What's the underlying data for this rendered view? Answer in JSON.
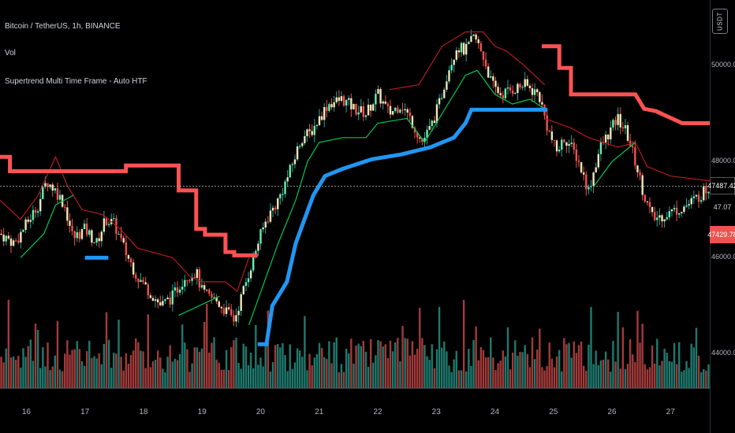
{
  "header": {
    "symbol_line": "Bitcoin / TetherUS, 1h, BINANCE",
    "volume_label": "Vol",
    "indicator_label": "Supertrend Multi Time Frame - Auto HTF",
    "currency_badge": "USDT"
  },
  "price_tags": {
    "last_price": "47487.42",
    "volume_value": "47.07",
    "supertrend_value": "47429.78"
  },
  "colors": {
    "background": "#000000",
    "candle_up": "#26a69a",
    "candle_down": "#ef5350",
    "candle_body_light": "#f0e6b8",
    "supertrend_htf_down": "#ff5252",
    "supertrend_htf_up": "#2196f3",
    "supertrend_ltf_down": "#b71c1c",
    "supertrend_ltf_up": "#00c853",
    "volume_up": "#1e7a6e",
    "volume_down": "#a33a3a"
  },
  "chart_data": {
    "type": "candlestick",
    "title": "Bitcoin / TetherUS, 1h, BINANCE",
    "x_ticks": [
      "16",
      "17",
      "18",
      "19",
      "20",
      "21",
      "22",
      "23",
      "24",
      "25",
      "26",
      "27"
    ],
    "x_range": [
      15.55,
      27.67
    ],
    "y_ticks": [
      "44000.00",
      "46000.00",
      "48000.00",
      "50000.00"
    ],
    "y_range": [
      43500,
      51200
    ],
    "last_price": 47487.42,
    "close_series": [
      [
        15.55,
        46500
      ],
      [
        15.8,
        46300
      ],
      [
        16.0,
        46700
      ],
      [
        16.2,
        47100
      ],
      [
        16.35,
        47600
      ],
      [
        16.5,
        47400
      ],
      [
        16.65,
        47100
      ],
      [
        16.8,
        46400
      ],
      [
        17.0,
        46600
      ],
      [
        17.2,
        46300
      ],
      [
        17.35,
        46800
      ],
      [
        17.5,
        46700
      ],
      [
        17.7,
        46100
      ],
      [
        17.9,
        45600
      ],
      [
        18.1,
        45300
      ],
      [
        18.3,
        45000
      ],
      [
        18.5,
        45200
      ],
      [
        18.7,
        45600
      ],
      [
        18.9,
        45700
      ],
      [
        19.0,
        45300
      ],
      [
        19.1,
        45200
      ],
      [
        19.25,
        45100
      ],
      [
        19.4,
        44900
      ],
      [
        19.55,
        44700
      ],
      [
        19.65,
        45100
      ],
      [
        19.8,
        45700
      ],
      [
        19.95,
        46300
      ],
      [
        20.1,
        46800
      ],
      [
        20.3,
        47200
      ],
      [
        20.5,
        47800
      ],
      [
        20.7,
        48500
      ],
      [
        20.85,
        48600
      ],
      [
        21.0,
        48900
      ],
      [
        21.15,
        49200
      ],
      [
        21.4,
        49300
      ],
      [
        21.6,
        49100
      ],
      [
        21.8,
        49000
      ],
      [
        22.0,
        49400
      ],
      [
        22.2,
        49000
      ],
      [
        22.4,
        49200
      ],
      [
        22.6,
        48800
      ],
      [
        22.75,
        48400
      ],
      [
        22.9,
        48700
      ],
      [
        23.05,
        49200
      ],
      [
        23.2,
        49900
      ],
      [
        23.35,
        50400
      ],
      [
        23.5,
        50300
      ],
      [
        23.65,
        50600
      ],
      [
        23.8,
        50200
      ],
      [
        23.95,
        49600
      ],
      [
        24.1,
        49400
      ],
      [
        24.3,
        49500
      ],
      [
        24.5,
        49600
      ],
      [
        24.75,
        49400
      ],
      [
        24.9,
        48700
      ],
      [
        25.05,
        48200
      ],
      [
        25.2,
        48500
      ],
      [
        25.4,
        48100
      ],
      [
        25.6,
        47400
      ],
      [
        25.8,
        48300
      ],
      [
        25.95,
        48600
      ],
      [
        26.1,
        48900
      ],
      [
        26.25,
        48600
      ],
      [
        26.4,
        48000
      ],
      [
        26.55,
        47300
      ],
      [
        26.7,
        46800
      ],
      [
        26.9,
        46900
      ],
      [
        27.1,
        47000
      ],
      [
        27.3,
        47100
      ],
      [
        27.5,
        47300
      ],
      [
        27.67,
        47487
      ]
    ],
    "supertrend_htf": [
      {
        "trend": "down",
        "points": [
          [
            15.55,
            48100
          ],
          [
            15.72,
            48100
          ],
          [
            15.72,
            47800
          ],
          [
            17.7,
            47800
          ],
          [
            17.7,
            47920
          ],
          [
            18.6,
            47920
          ],
          [
            18.6,
            47400
          ],
          [
            18.9,
            47400
          ],
          [
            18.9,
            46600
          ],
          [
            19.05,
            46600
          ],
          [
            19.05,
            46480
          ],
          [
            19.4,
            46480
          ],
          [
            19.4,
            46120
          ],
          [
            19.55,
            46120
          ],
          [
            19.55,
            46050
          ],
          [
            19.95,
            46050
          ]
        ]
      },
      {
        "trend": "up",
        "points": [
          [
            17.0,
            46000
          ],
          [
            17.4,
            46000
          ]
        ]
      },
      {
        "trend": "up",
        "points": [
          [
            19.95,
            44200
          ],
          [
            20.1,
            44200
          ],
          [
            20.2,
            45000
          ],
          [
            20.45,
            45500
          ],
          [
            20.6,
            46300
          ],
          [
            20.75,
            46800
          ],
          [
            20.9,
            47300
          ],
          [
            21.1,
            47700
          ],
          [
            21.4,
            47850
          ],
          [
            21.9,
            48050
          ],
          [
            22.4,
            48150
          ],
          [
            22.9,
            48300
          ],
          [
            23.3,
            48500
          ],
          [
            23.5,
            48800
          ],
          [
            23.6,
            49080
          ],
          [
            24.9,
            49080
          ]
        ]
      },
      {
        "trend": "down",
        "points": [
          [
            24.8,
            50400
          ],
          [
            25.1,
            50400
          ],
          [
            25.1,
            49950
          ],
          [
            25.3,
            49950
          ],
          [
            25.3,
            49400
          ],
          [
            26.4,
            49400
          ],
          [
            26.55,
            49100
          ],
          [
            26.75,
            49050
          ],
          [
            27.2,
            48800
          ],
          [
            27.67,
            48800
          ]
        ]
      }
    ],
    "supertrend_ltf": [
      {
        "trend": "down",
        "points": [
          [
            15.55,
            47200
          ],
          [
            15.9,
            46800
          ],
          [
            16.2,
            47300
          ],
          [
            16.5,
            48100
          ],
          [
            16.7,
            47500
          ],
          [
            16.95,
            47000
          ],
          [
            17.3,
            46900
          ],
          [
            17.6,
            46600
          ],
          [
            17.9,
            46200
          ],
          [
            18.2,
            46100
          ],
          [
            18.5,
            46000
          ],
          [
            18.8,
            45600
          ],
          [
            19.0,
            45500
          ],
          [
            19.4,
            45500
          ],
          [
            19.6,
            45300
          ],
          [
            19.8,
            46000
          ]
        ]
      },
      {
        "trend": "up",
        "points": [
          [
            15.9,
            46000
          ],
          [
            16.3,
            46500
          ],
          [
            16.5,
            47100
          ],
          [
            16.8,
            47300
          ]
        ]
      },
      {
        "trend": "up",
        "points": [
          [
            18.6,
            44800
          ],
          [
            19.3,
            45200
          ]
        ]
      },
      {
        "trend": "up",
        "points": [
          [
            19.8,
            44600
          ],
          [
            20.3,
            46300
          ],
          [
            20.6,
            47200
          ],
          [
            20.8,
            48000
          ],
          [
            21.0,
            48400
          ],
          [
            21.4,
            48500
          ],
          [
            21.8,
            48500
          ],
          [
            22.0,
            48800
          ],
          [
            22.5,
            48900
          ],
          [
            22.8,
            48400
          ],
          [
            23.0,
            48800
          ],
          [
            23.3,
            49400
          ],
          [
            23.5,
            49800
          ],
          [
            23.7,
            49900
          ],
          [
            24.0,
            49400
          ],
          [
            24.3,
            49200
          ],
          [
            24.6,
            49300
          ],
          [
            24.85,
            49100
          ]
        ]
      },
      {
        "trend": "down",
        "points": [
          [
            22.2,
            49500
          ],
          [
            22.7,
            49600
          ],
          [
            23.1,
            50400
          ],
          [
            23.5,
            50700
          ],
          [
            23.8,
            50700
          ],
          [
            24.0,
            50400
          ],
          [
            24.2,
            50300
          ],
          [
            24.5,
            50000
          ],
          [
            24.85,
            49600
          ]
        ]
      },
      {
        "trend": "down",
        "points": [
          [
            24.85,
            48900
          ],
          [
            25.3,
            48700
          ],
          [
            25.6,
            48500
          ],
          [
            26.1,
            48300
          ],
          [
            26.4,
            48400
          ],
          [
            26.6,
            47900
          ],
          [
            27.0,
            47700
          ],
          [
            27.67,
            47600
          ]
        ]
      },
      {
        "trend": "up",
        "points": [
          [
            25.7,
            47500
          ],
          [
            26.0,
            48000
          ],
          [
            26.4,
            48400
          ]
        ]
      }
    ]
  }
}
